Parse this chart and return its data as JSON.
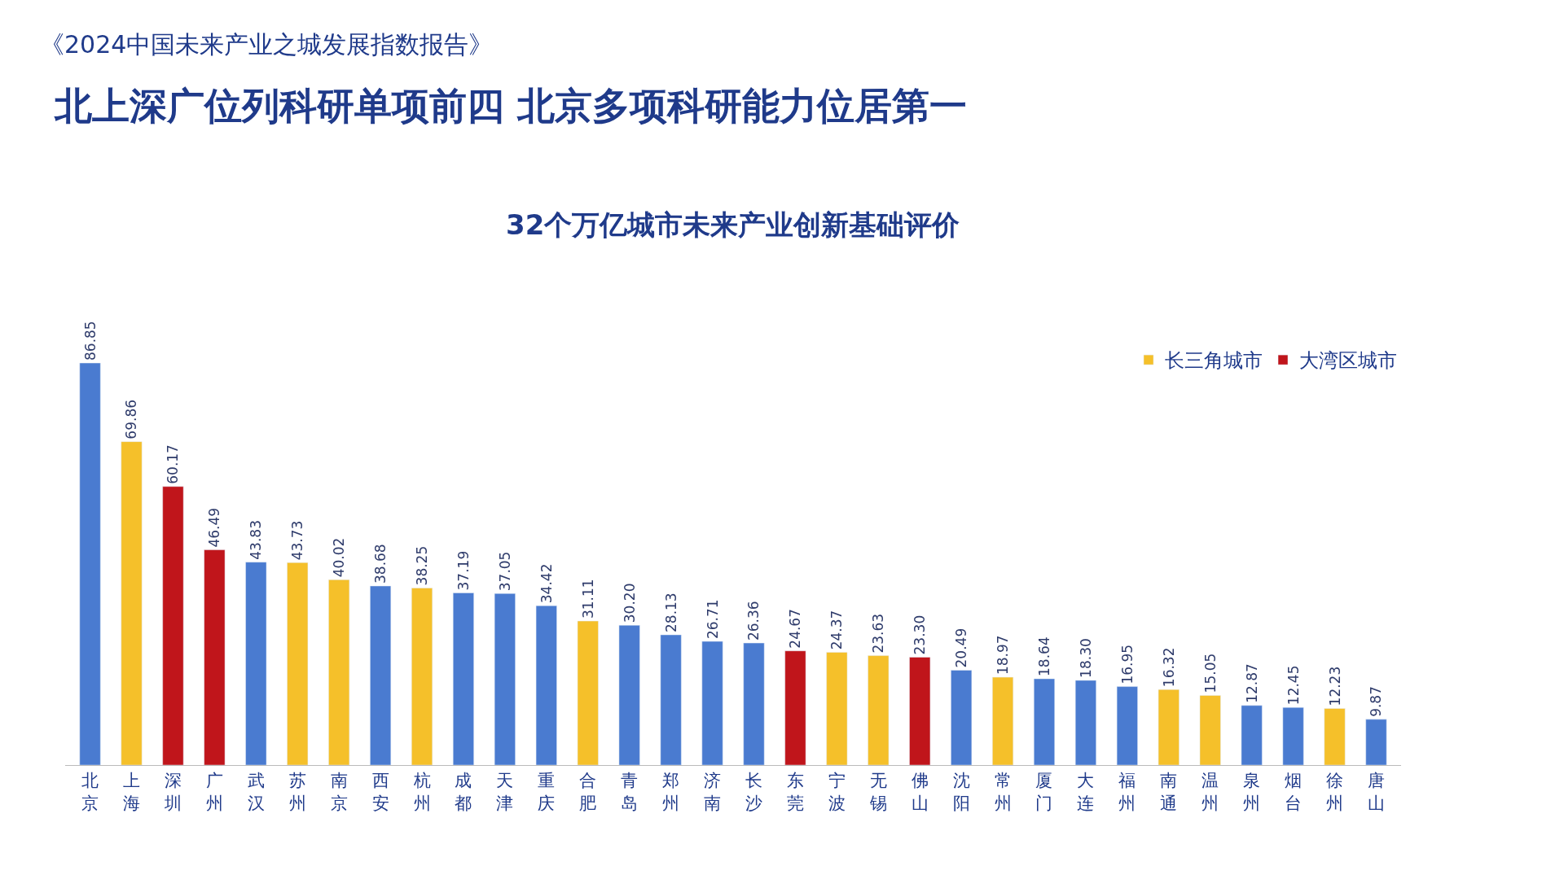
{
  "chart_data": {
    "type": "bar",
    "title": "北上深广位列科研单项前四 北京多项科研能力位居第一",
    "subtitle": "32个万亿城市未来产业创新基础评价",
    "annotations": [
      "《2024中国未来产业之城发展指数报告》"
    ],
    "categories": [
      "北京",
      "上海",
      "深圳",
      "广州",
      "武汉",
      "苏州",
      "南京",
      "西安",
      "杭州",
      "成都",
      "天津",
      "重庆",
      "合肥",
      "青岛",
      "郑州",
      "济南",
      "长沙",
      "东莞",
      "宁波",
      "无锡",
      "佛山",
      "沈阳",
      "常州",
      "厦门",
      "大连",
      "福州",
      "南通",
      "温州",
      "泉州",
      "烟台",
      "徐州",
      "唐山"
    ],
    "series": [
      {
        "color": "#4a7bd0",
        "values": [
          86.85,
          null,
          null,
          null,
          43.83,
          null,
          null,
          38.68,
          null,
          37.19,
          37.05,
          34.42,
          null,
          30.2,
          28.13,
          26.71,
          26.36,
          null,
          null,
          null,
          null,
          20.49,
          null,
          18.64,
          18.3,
          16.95,
          null,
          null,
          12.87,
          12.45,
          null,
          9.87
        ],
        "value_labels": [
          "86.85",
          null,
          null,
          null,
          "43.83",
          null,
          null,
          "38.68",
          null,
          "37.19",
          "37.05",
          "34.42",
          null,
          "30.20",
          "28.13",
          "26.71",
          "26.36",
          null,
          null,
          null,
          null,
          "20.49",
          null,
          "18.64",
          "18.30",
          "16.95",
          null,
          null,
          "12.87",
          "12.45",
          null,
          "9.87"
        ]
      },
      {
        "name": "长三角城市",
        "color": "#f5c02a",
        "values": [
          null,
          69.86,
          null,
          null,
          null,
          43.73,
          40.02,
          null,
          38.25,
          null,
          null,
          null,
          31.11,
          null,
          null,
          null,
          null,
          null,
          24.37,
          23.63,
          null,
          null,
          18.97,
          null,
          null,
          null,
          16.32,
          15.05,
          null,
          null,
          12.23,
          null
        ],
        "value_labels": [
          null,
          "69.86",
          null,
          null,
          null,
          "43.73",
          "40.02",
          null,
          "38.25",
          null,
          null,
          null,
          "31.11",
          null,
          null,
          null,
          null,
          null,
          "24.37",
          "23.63",
          null,
          null,
          "18.97",
          null,
          null,
          null,
          "16.32",
          "15.05",
          null,
          null,
          "12.23",
          null
        ]
      },
      {
        "name": "大湾区城市",
        "color": "#c0151b",
        "values": [
          null,
          null,
          60.17,
          46.49,
          null,
          null,
          null,
          null,
          null,
          null,
          null,
          null,
          null,
          null,
          null,
          null,
          null,
          24.67,
          null,
          null,
          23.3,
          null,
          null,
          null,
          null,
          null,
          null,
          null,
          null,
          null,
          null,
          null
        ],
        "value_labels": [
          null,
          null,
          "60.17",
          "46.49",
          null,
          null,
          null,
          null,
          null,
          null,
          null,
          null,
          null,
          null,
          null,
          null,
          null,
          "24.67",
          null,
          null,
          "23.30",
          null,
          null,
          null,
          null,
          null,
          null,
          null,
          null,
          null,
          null,
          null
        ]
      }
    ],
    "legend": "top right",
    "tick_labels": "x"
  }
}
